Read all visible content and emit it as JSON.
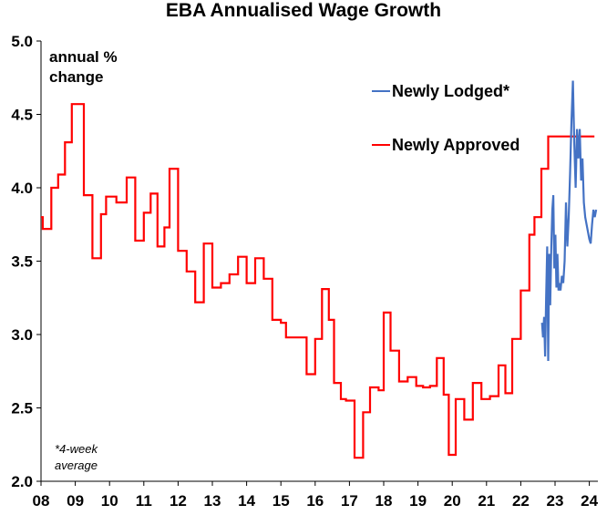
{
  "chart_data": {
    "type": "line",
    "title": "EBA Annualised Wage Growth",
    "ylabel_line1": "annual %",
    "ylabel_line2": "change",
    "footnote_line1": "*4-week",
    "footnote_line2": "average",
    "ylim": [
      2.0,
      5.0
    ],
    "xlim": [
      2008.0,
      2024.25
    ],
    "y_ticks": [
      "5.0",
      "4.5",
      "4.0",
      "3.5",
      "3.0",
      "2.5",
      "2.0"
    ],
    "x_ticks": [
      "08",
      "09",
      "10",
      "11",
      "12",
      "13",
      "14",
      "15",
      "16",
      "17",
      "18",
      "19",
      "20",
      "21",
      "22",
      "23",
      "24"
    ],
    "legend": {
      "position": "top-right"
    },
    "series": [
      {
        "name": "Newly Lodged*",
        "color": "#4472C4",
        "style": "line",
        "x": [
          2022.62,
          2022.65,
          2022.68,
          2022.71,
          2022.74,
          2022.77,
          2022.8,
          2022.83,
          2022.86,
          2022.89,
          2022.92,
          2022.95,
          2022.98,
          2023.01,
          2023.04,
          2023.07,
          2023.1,
          2023.13,
          2023.16,
          2023.2,
          2023.24,
          2023.28,
          2023.32,
          2023.36,
          2023.4,
          2023.44,
          2023.48,
          2023.52,
          2023.56,
          2023.6,
          2023.64,
          2023.68,
          2023.72,
          2023.76,
          2023.8,
          2023.84,
          2023.88,
          2023.92,
          2023.96,
          2024.0,
          2024.04,
          2024.08,
          2024.12,
          2024.16,
          2024.2
        ],
        "values": [
          3.08,
          2.98,
          3.12,
          2.85,
          3.25,
          3.6,
          2.82,
          3.55,
          3.2,
          3.6,
          3.85,
          3.95,
          3.45,
          3.68,
          3.32,
          3.55,
          3.3,
          3.35,
          3.3,
          3.4,
          3.35,
          3.5,
          3.9,
          3.6,
          3.8,
          4.1,
          4.45,
          4.73,
          4.3,
          4.0,
          4.4,
          4.2,
          4.4,
          4.05,
          4.2,
          3.9,
          3.8,
          3.75,
          3.7,
          3.65,
          3.62,
          3.75,
          3.85,
          3.8,
          3.85
        ]
      },
      {
        "name": "Newly Approved",
        "color": "#FF0000",
        "style": "step",
        "x": [
          2008.0,
          2008.05,
          2008.3,
          2008.5,
          2008.7,
          2008.9,
          2009.0,
          2009.25,
          2009.5,
          2009.75,
          2009.9,
          2010.0,
          2010.2,
          2010.5,
          2010.75,
          2011.0,
          2011.2,
          2011.4,
          2011.6,
          2011.75,
          2012.0,
          2012.25,
          2012.5,
          2012.75,
          2013.0,
          2013.25,
          2013.5,
          2013.75,
          2014.0,
          2014.25,
          2014.5,
          2014.75,
          2015.0,
          2015.15,
          2015.35,
          2015.55,
          2015.75,
          2016.0,
          2016.2,
          2016.4,
          2016.55,
          2016.75,
          2016.9,
          2017.15,
          2017.4,
          2017.6,
          2017.85,
          2018.0,
          2018.2,
          2018.45,
          2018.7,
          2018.95,
          2019.15,
          2019.35,
          2019.55,
          2019.75,
          2019.9,
          2020.1,
          2020.35,
          2020.6,
          2020.85,
          2021.1,
          2021.35,
          2021.55,
          2021.75,
          2022.0,
          2022.25,
          2022.4,
          2022.6,
          2022.8,
          2023.0,
          2023.2,
          2023.45,
          2023.65,
          2023.85,
          2024.0
        ],
        "values": [
          3.8,
          3.72,
          4.0,
          4.09,
          4.31,
          4.57,
          4.57,
          3.95,
          3.52,
          3.82,
          3.94,
          3.94,
          3.9,
          4.07,
          3.64,
          3.83,
          3.96,
          3.6,
          3.73,
          4.13,
          3.57,
          3.43,
          3.22,
          3.62,
          3.32,
          3.35,
          3.41,
          3.53,
          3.35,
          3.52,
          3.38,
          3.1,
          3.08,
          2.98,
          2.98,
          2.98,
          2.73,
          2.97,
          3.31,
          3.1,
          2.67,
          2.56,
          2.55,
          2.16,
          2.47,
          2.64,
          2.62,
          3.15,
          2.89,
          2.68,
          2.71,
          2.65,
          2.64,
          2.65,
          2.84,
          2.59,
          2.18,
          2.56,
          2.42,
          2.67,
          2.56,
          2.58,
          2.79,
          2.6,
          2.97,
          3.3,
          3.68,
          3.8,
          4.13,
          4.35,
          4.35,
          4.35,
          4.35,
          4.35,
          4.35,
          4.35
        ]
      }
    ]
  }
}
